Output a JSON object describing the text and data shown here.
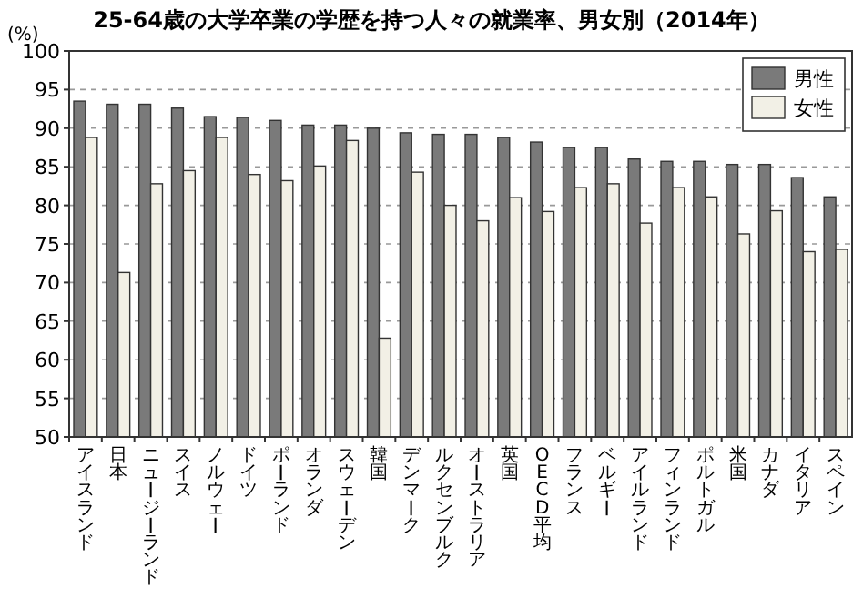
{
  "chart_data": {
    "type": "bar",
    "title": "25-64歳の大学卒業の学歴を持つ人々の就業率、男女別（2014年）",
    "ylabel": "(%)",
    "categories": [
      "アイスランド",
      "日本",
      "ニュージーランド",
      "スイス",
      "ノルウェー",
      "ドイツ",
      "ポーランド",
      "オランダ",
      "スウェーデン",
      "韓国",
      "デンマーク",
      "ルクセンブルク",
      "オーストラリア",
      "英国",
      "OECD平均",
      "フランス",
      "ベルギー",
      "アイルランド",
      "フィンランド",
      "ポルトガル",
      "米国",
      "カナダ",
      "イタリア",
      "スペイン"
    ],
    "series": [
      {
        "name": "男性",
        "color": "#7a7a7a",
        "values": [
          93.5,
          93.1,
          93.1,
          92.6,
          91.5,
          91.4,
          91.0,
          90.4,
          90.4,
          90.0,
          89.4,
          89.2,
          89.2,
          88.8,
          88.2,
          87.5,
          87.5,
          86.0,
          85.7,
          85.7,
          85.3,
          85.3,
          83.6,
          81.1
        ]
      },
      {
        "name": "女性",
        "color": "#f2f0e6",
        "values": [
          88.8,
          71.3,
          82.8,
          84.5,
          88.8,
          84.0,
          83.2,
          85.1,
          88.4,
          62.8,
          84.3,
          80.0,
          78.0,
          81.0,
          79.2,
          82.3,
          82.8,
          77.7,
          82.3,
          81.1,
          76.3,
          79.3,
          74.0,
          74.3
        ]
      }
    ],
    "ylim": [
      50,
      100
    ],
    "yticks": [
      50,
      55,
      60,
      65,
      70,
      75,
      80,
      85,
      90,
      95,
      100
    ],
    "grid": "y",
    "legend": "top right"
  }
}
